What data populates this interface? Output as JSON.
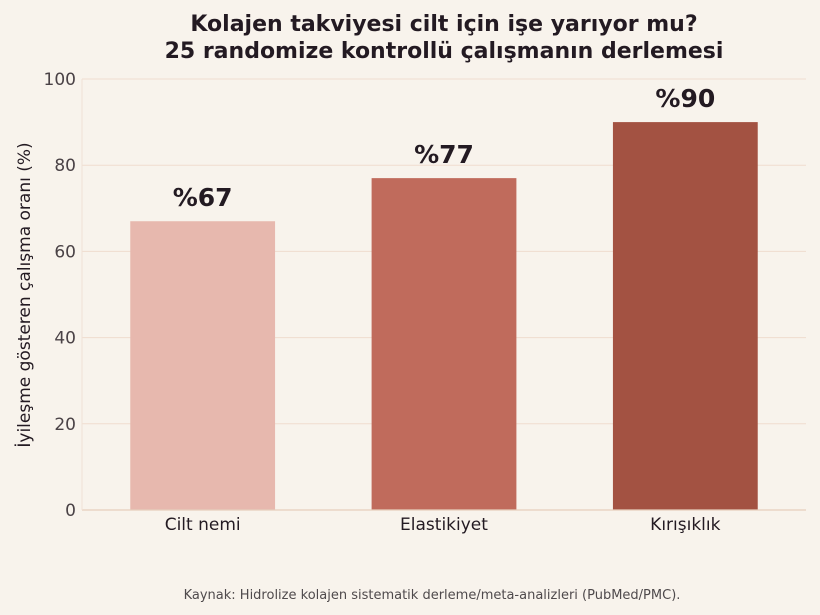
{
  "chart_data": {
    "type": "bar",
    "title": [
      "Kolajen takviyesi cilt için işe yarıyor mu?",
      "25 randomize kontrollü çalışmanın derlemesi"
    ],
    "xlabel": "",
    "ylabel": "İyileşme gösteren çalışma oranı (%)",
    "categories": [
      "Cilt nemi",
      "Elastikiyet",
      "Kırışıklık"
    ],
    "values": [
      67,
      77,
      90
    ],
    "value_labels": [
      "%67",
      "%77",
      "%90"
    ],
    "colors": [
      "#e7b8ae",
      "#c06b5c",
      "#a35242"
    ],
    "ylim": [
      0,
      100
    ],
    "yticks": [
      0,
      20,
      40,
      60,
      80,
      100
    ],
    "grid": true,
    "legend": "none",
    "source": "Kaynak: Hidrolize kolajen sistematik derleme/meta-analizleri (PubMed/PMC)."
  }
}
